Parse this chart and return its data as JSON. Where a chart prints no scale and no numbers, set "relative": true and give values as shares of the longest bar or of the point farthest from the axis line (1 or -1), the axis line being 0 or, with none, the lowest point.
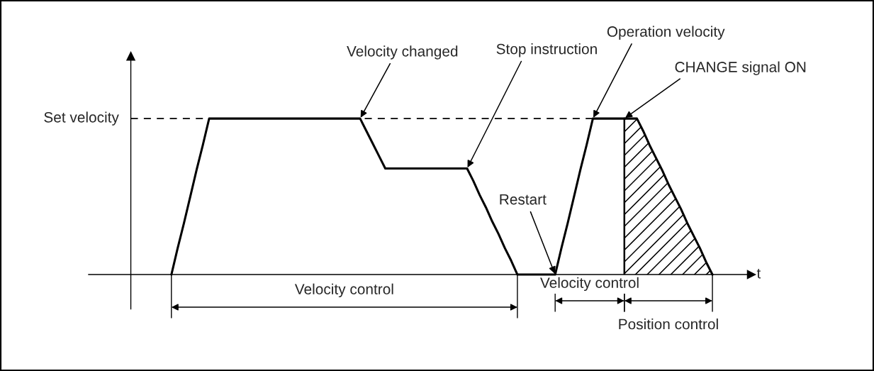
{
  "chart_data": {
    "type": "line",
    "relative": true,
    "xlabel": "t",
    "categories": [
      null,
      null,
      null,
      null,
      null,
      null,
      null,
      null,
      null,
      null,
      null,
      null,
      null,
      null,
      null,
      null,
      null,
      null,
      null,
      null,
      null,
      null,
      null,
      null,
      null,
      null,
      null,
      null,
      null,
      null,
      null,
      null,
      null,
      null,
      null,
      null,
      null,
      null,
      null,
      null,
      null,
      null,
      null,
      null,
      null,
      null,
      null,
      null,
      null,
      null,
      null,
      null,
      null,
      null,
      null,
      null,
      null,
      null,
      null,
      null,
      null,
      null,
      null,
      null,
      null,
      null,
      null,
      null,
      null,
      null,
      null,
      null,
      null,
      null,
      null,
      null,
      null,
      null,
      null,
      null,
      null,
      null,
      null,
      null,
      null,
      null,
      null
    ],
    "series": [
      {
        "color": "#000000",
        "values": [
          0,
          0.17,
          0.33,
          0.5,
          0.67,
          0.83,
          1,
          1,
          1,
          1,
          1,
          1,
          1,
          1,
          1,
          1,
          1,
          1,
          1,
          1,
          1,
          1,
          1,
          1,
          1,
          1,
          1,
          1,
          1,
          1,
          1,
          0.92,
          0.84,
          0.76,
          0.68,
          0.68,
          0.68,
          0.68,
          0.68,
          0.68,
          0.68,
          0.68,
          0.68,
          0.68,
          0.68,
          0.68,
          0.68,
          0.68,
          0.6,
          0.51,
          0.43,
          0.34,
          0.26,
          0.17,
          0.09,
          0,
          0,
          0,
          0,
          0,
          0,
          0,
          0.17,
          0.33,
          0.5,
          0.67,
          0.83,
          1,
          1,
          1,
          1,
          1,
          1,
          null,
          null,
          null,
          null,
          null,
          null,
          null,
          null,
          null,
          null,
          null,
          null,
          null,
          null
        ]
      },
      {
        "type": "area",
        "color": "#000000",
        "values": [
          null,
          null,
          null,
          null,
          null,
          null,
          null,
          null,
          null,
          null,
          null,
          null,
          null,
          null,
          null,
          null,
          null,
          null,
          null,
          null,
          null,
          null,
          null,
          null,
          null,
          null,
          null,
          null,
          null,
          null,
          null,
          null,
          null,
          null,
          null,
          null,
          null,
          null,
          null,
          null,
          null,
          null,
          null,
          null,
          null,
          null,
          null,
          null,
          null,
          null,
          null,
          null,
          null,
          null,
          null,
          null,
          null,
          null,
          null,
          null,
          null,
          null,
          null,
          null,
          null,
          null,
          null,
          null,
          null,
          null,
          null,
          null,
          1,
          1,
          1,
          0.92,
          0.83,
          0.75,
          0.67,
          0.58,
          0.5,
          0.42,
          0.33,
          0.25,
          0.17,
          0.08,
          0
        ]
      }
    ],
    "ref_lines": [
      {
        "axis": "y",
        "value": 1,
        "label": "Set velocity",
        "line_style": "dashed"
      }
    ],
    "annotations": [
      "Velocity changed",
      "Stop instruction",
      "Restart",
      "Operation velocity",
      "CHANGE signal ON",
      "Velocity control",
      "Velocity control",
      "Position control"
    ]
  }
}
